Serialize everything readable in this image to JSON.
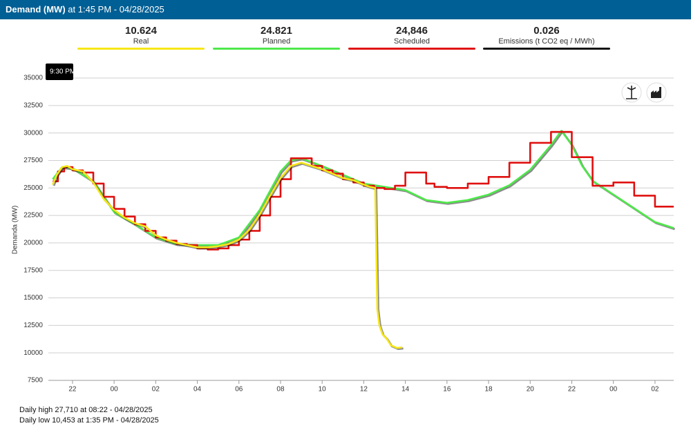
{
  "header": {
    "title": "Demand (MW)",
    "subtitle": "at 1:45 PM - 04/28/2025"
  },
  "summary": [
    {
      "value": "10.624",
      "label": "Real",
      "color": "#f7e617"
    },
    {
      "value": "24.821",
      "label": "Planned",
      "color": "#4ee84a"
    },
    {
      "value": "24,846",
      "label": "Scheduled",
      "color": "#e01010"
    },
    {
      "value": "0.026",
      "label": "Emissions (t CO2 eq / MWh)",
      "color": "#111111"
    }
  ],
  "tooltip": "9:30 PM",
  "chart_data": {
    "type": "line",
    "ylabel": "Demanda (MW)",
    "xlim": [
      20.84,
      50.9
    ],
    "ylim": [
      7500,
      35000
    ],
    "yticks": [
      7500,
      10000,
      12500,
      15000,
      17500,
      20000,
      22500,
      25000,
      27500,
      30000,
      32500,
      35000
    ],
    "xticks": [
      22,
      {
        "value": 24,
        "label": "00"
      },
      {
        "value": 26,
        "label": "02"
      },
      {
        "value": 28,
        "label": "04"
      },
      {
        "value": 30,
        "label": "06"
      },
      {
        "value": 32,
        "label": "08"
      },
      {
        "value": 34,
        "label": "10"
      },
      {
        "value": 36,
        "label": "12"
      },
      {
        "value": 38,
        "label": "14"
      },
      {
        "value": 40,
        "label": "16"
      },
      {
        "value": 42,
        "label": "18"
      },
      {
        "value": 44,
        "label": "20"
      },
      {
        "value": 46,
        "label": "22"
      },
      {
        "value": 48,
        "label": "00"
      },
      {
        "value": 50,
        "label": "02"
      }
    ],
    "grid": true,
    "series": [
      {
        "name": "Planned",
        "color": "#4ee84a",
        "step": false,
        "x": [
          21.05,
          21.5,
          22,
          23,
          24,
          25,
          26,
          27,
          28,
          29,
          30,
          31,
          32,
          32.5,
          33,
          34,
          35,
          36,
          37,
          38,
          39,
          40,
          41,
          42,
          43,
          44,
          45,
          45.5,
          46,
          46.5,
          47,
          48,
          49,
          50,
          50.9
        ],
        "values": [
          25800,
          26900,
          26800,
          25600,
          22800,
          21700,
          20500,
          19900,
          19800,
          19800,
          20500,
          23000,
          26500,
          27500,
          27700,
          27000,
          26200,
          25400,
          25100,
          24800,
          23900,
          23650,
          23900,
          24400,
          25250,
          26650,
          28900,
          30200,
          28900,
          27000,
          25650,
          24400,
          23150,
          21900,
          21350
        ]
      },
      {
        "name": "Scheduled",
        "color": "#e01010",
        "step": true,
        "x": [
          21.05,
          21.3,
          21.6,
          22,
          22.5,
          23,
          23.5,
          24,
          24.5,
          25,
          25.5,
          26,
          26.5,
          27,
          27.5,
          28,
          28.5,
          29,
          29.5,
          30,
          30.5,
          31,
          31.5,
          32,
          32.5,
          33.5,
          34,
          34.5,
          35,
          35.5,
          36,
          36.5,
          37,
          37.5,
          38,
          39,
          39.4,
          40,
          41,
          42,
          43,
          44,
          45,
          46,
          47,
          48,
          49,
          50,
          50.9
        ],
        "values": [
          25600,
          26500,
          26900,
          26600,
          26400,
          25400,
          24200,
          23100,
          22400,
          21700,
          21100,
          20500,
          20200,
          19900,
          19800,
          19500,
          19400,
          19500,
          19800,
          20300,
          21100,
          22500,
          24200,
          25800,
          27700,
          27000,
          26600,
          26300,
          25800,
          25500,
          25200,
          25000,
          24900,
          25200,
          26400,
          25400,
          25100,
          25000,
          25400,
          26000,
          27300,
          29100,
          30100,
          27800,
          25200,
          25500,
          24300,
          23300,
          23300
        ]
      },
      {
        "name": "Real",
        "color": "#f7e617",
        "step": false,
        "x": [
          21.05,
          21.25,
          21.5,
          21.75,
          22,
          22.5,
          23,
          23.5,
          24,
          24.5,
          25,
          25.5,
          26,
          26.5,
          27,
          27.5,
          28,
          28.5,
          29,
          29.5,
          30,
          30.5,
          31,
          31.5,
          32,
          32.5,
          33,
          33.5,
          34,
          34.5,
          35,
          35.5,
          36,
          36.3,
          36.55,
          36.65,
          36.75,
          36.9,
          37.1,
          37.3,
          37.6,
          37.85
        ],
        "values": [
          25300,
          26200,
          26900,
          27000,
          26700,
          26500,
          25500,
          24000,
          23000,
          22300,
          21800,
          21500,
          20700,
          20300,
          20000,
          19800,
          19600,
          19600,
          19700,
          19900,
          20300,
          21200,
          22600,
          24300,
          25900,
          27000,
          27300,
          27000,
          26700,
          26300,
          25900,
          25700,
          25300,
          25100,
          25000,
          14000,
          12500,
          11700,
          11300,
          10700,
          10450,
          10500
        ]
      }
    ]
  },
  "footer": [
    "Daily high 27,710 at 08:22 - 04/28/2025",
    "Daily low 10,453 at 1:35 PM - 04/28/2025"
  ]
}
